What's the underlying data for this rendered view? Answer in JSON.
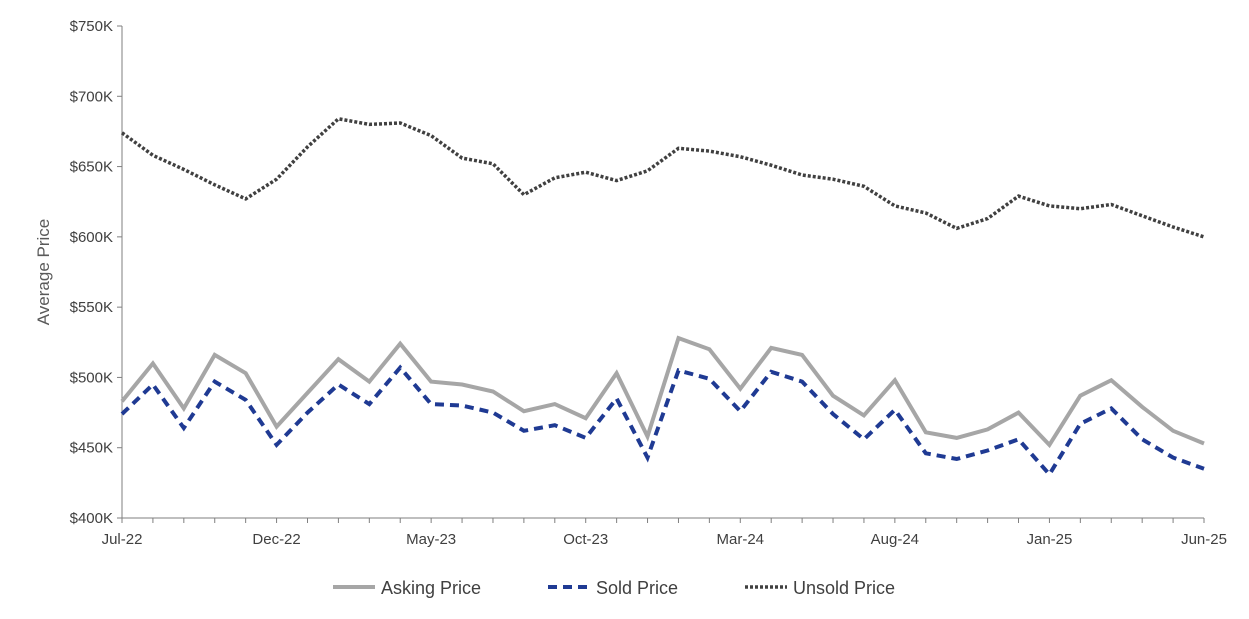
{
  "chart_data": {
    "type": "line",
    "title": "",
    "xlabel": "",
    "ylabel": "Average Price",
    "ylim": [
      400000,
      750000
    ],
    "y_ticks": [
      400000,
      450000,
      500000,
      550000,
      600000,
      650000,
      700000,
      750000
    ],
    "y_tick_labels": [
      "$400K",
      "$450K",
      "$500K",
      "$550K",
      "$600K",
      "$650K",
      "$700K",
      "$750K"
    ],
    "x": [
      "Jul-22",
      "Aug-22",
      "Sep-22",
      "Oct-22",
      "Nov-22",
      "Dec-22",
      "Jan-23",
      "Feb-23",
      "Mar-23",
      "Apr-23",
      "May-23",
      "Jun-23",
      "Jul-23",
      "Aug-23",
      "Sep-23",
      "Oct-23",
      "Nov-23",
      "Dec-23",
      "Jan-24",
      "Feb-24",
      "Mar-24",
      "Apr-24",
      "May-24",
      "Jun-24",
      "Jul-24",
      "Aug-24",
      "Sep-24",
      "Oct-24",
      "Nov-24",
      "Dec-24",
      "Jan-25",
      "Feb-25",
      "Mar-25",
      "Apr-25",
      "May-25",
      "Jun-25"
    ],
    "x_tick_labels": [
      "Jul-22",
      "Dec-22",
      "May-23",
      "Oct-23",
      "Mar-24",
      "Aug-24",
      "Jan-25",
      "Jun-25"
    ],
    "grid": false,
    "legend_position": "bottom",
    "series": [
      {
        "name": "Asking Price",
        "color": "#a6a6a6",
        "style": "solid",
        "values": [
          483000,
          510000,
          478000,
          516000,
          503000,
          465000,
          489000,
          513000,
          497000,
          524000,
          497000,
          495000,
          490000,
          476000,
          481000,
          471000,
          503000,
          458000,
          528000,
          520000,
          492000,
          521000,
          516000,
          487000,
          473000,
          498000,
          461000,
          457000,
          463000,
          475000,
          452000,
          487000,
          498000,
          479000,
          462000,
          453000
        ]
      },
      {
        "name": "Sold Price",
        "color": "#1f3a93",
        "style": "dashed",
        "values": [
          474000,
          495000,
          464000,
          497000,
          484000,
          452000,
          475000,
          495000,
          481000,
          507000,
          481000,
          480000,
          475000,
          462000,
          466000,
          457000,
          485000,
          443000,
          505000,
          499000,
          476000,
          504000,
          497000,
          474000,
          456000,
          477000,
          446000,
          442000,
          448000,
          456000,
          431000,
          467000,
          478000,
          456000,
          443000,
          435000
        ]
      },
      {
        "name": "Unsold Price",
        "color": "#404040",
        "style": "dotted",
        "values": [
          674000,
          658000,
          648000,
          637000,
          627000,
          641000,
          664000,
          684000,
          680000,
          681000,
          672000,
          656000,
          652000,
          630000,
          642000,
          646000,
          640000,
          647000,
          663000,
          661000,
          657000,
          651000,
          644000,
          641000,
          636000,
          622000,
          617000,
          606000,
          613000,
          629000,
          622000,
          620000,
          623000,
          615000,
          607000,
          600000
        ]
      }
    ]
  }
}
